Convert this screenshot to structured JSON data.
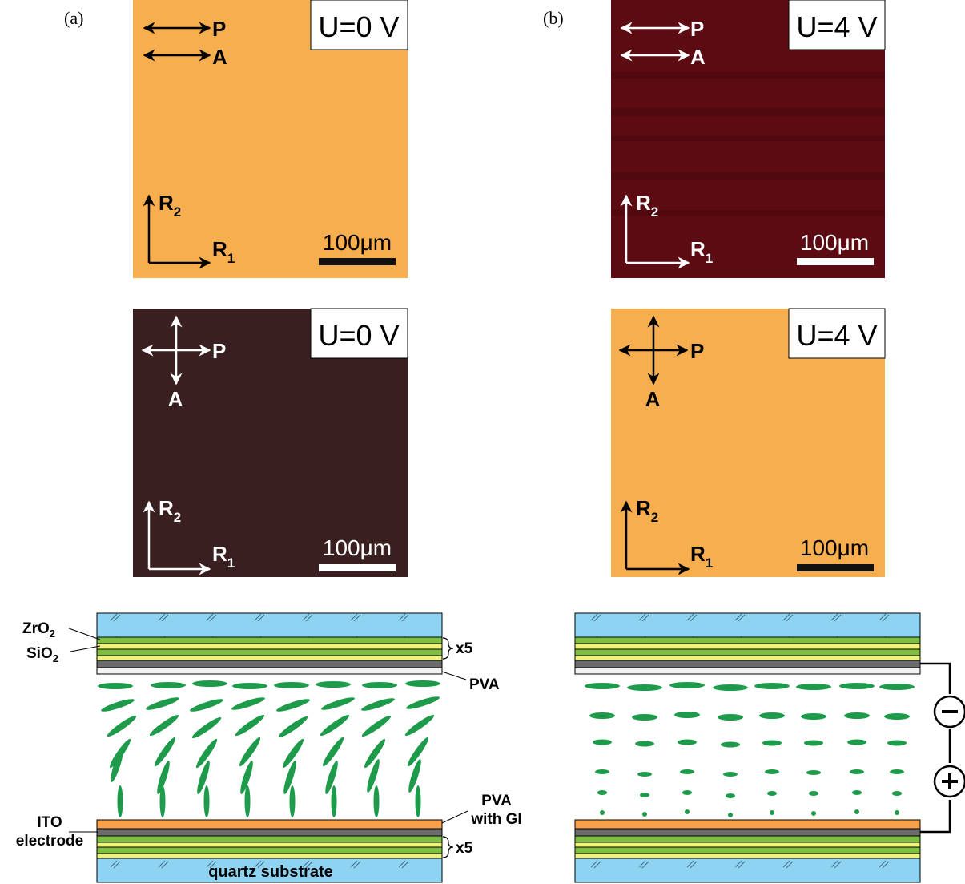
{
  "panel_labels": {
    "a": "(a)",
    "b": "(b)"
  },
  "colors": {
    "orange": "#F7AE4F",
    "dark_red": "#5C0B12",
    "dark_brown": "#3A1F20",
    "glass": "#8FD3F2",
    "green": "#7FBF3F",
    "yellow": "#EEF47A",
    "gray": "#6B6B6B",
    "ito_orange": "#F7A14B",
    "lc_green": "#1E9B4A"
  },
  "micrographs": {
    "a_top": {
      "voltage": "U=0 V",
      "polarizer": "P",
      "analyzer": "A",
      "r1": "R",
      "r1_sub": "1",
      "r2": "R",
      "r2_sub": "2",
      "scale": "100μm",
      "configuration": "parallel"
    },
    "a_bottom": {
      "voltage": "U=0 V",
      "polarizer": "P",
      "analyzer": "A",
      "r1": "R",
      "r1_sub": "1",
      "r2": "R",
      "r2_sub": "2",
      "scale": "100μm",
      "configuration": "crossed"
    },
    "b_top": {
      "voltage": "U=4 V",
      "polarizer": "P",
      "analyzer": "A",
      "r1": "R",
      "r1_sub": "1",
      "r2": "R",
      "r2_sub": "2",
      "scale": "100μm",
      "configuration": "parallel"
    },
    "b_bottom": {
      "voltage": "U=4 V",
      "polarizer": "P",
      "analyzer": "A",
      "r1": "R",
      "r1_sub": "1",
      "r2": "R",
      "r2_sub": "2",
      "scale": "100μm",
      "configuration": "crossed"
    }
  },
  "schematic": {
    "zro2": "ZrO",
    "zro2_sub": "2",
    "sio2": "SiO",
    "sio2_sub": "2",
    "x5_top": "x5",
    "pva": "PVA",
    "pva_gi_line1": "PVA",
    "pva_gi_line2": "with GI",
    "ito_line1": "ITO",
    "ito_line2": "electrode",
    "x5_bottom": "x5",
    "quartz": "quartz substrate",
    "minus": "−",
    "plus": "+"
  }
}
